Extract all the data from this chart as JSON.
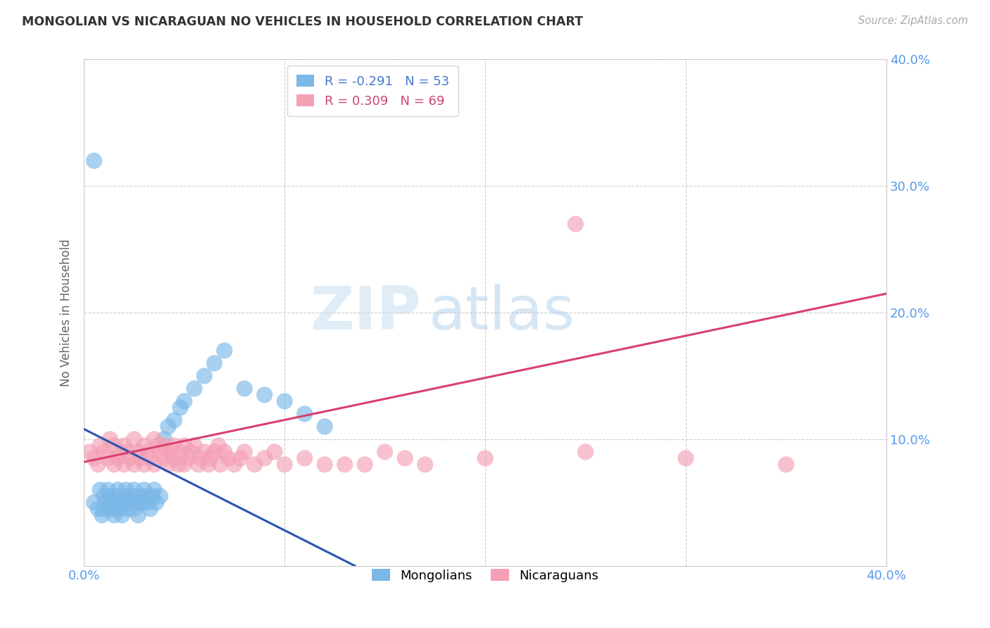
{
  "title": "MONGOLIAN VS NICARAGUAN NO VEHICLES IN HOUSEHOLD CORRELATION CHART",
  "source": "Source: ZipAtlas.com",
  "ylabel": "No Vehicles in Household",
  "xlim": [
    0.0,
    0.4
  ],
  "ylim": [
    0.0,
    0.4
  ],
  "legend_mongolian_R": "-0.291",
  "legend_mongolian_N": "53",
  "legend_nicaraguan_R": "0.309",
  "legend_nicaraguan_N": "69",
  "mongolian_color": "#7ab8e8",
  "nicaraguan_color": "#f4a0b5",
  "mongolian_line_color": "#2855b0",
  "nicaraguan_line_color": "#d94070",
  "watermark_zip": "ZIP",
  "watermark_atlas": "atlas",
  "mongolian_scatter_x": [
    0.005,
    0.007,
    0.008,
    0.009,
    0.01,
    0.01,
    0.011,
    0.012,
    0.013,
    0.013,
    0.014,
    0.015,
    0.015,
    0.016,
    0.017,
    0.018,
    0.018,
    0.019,
    0.02,
    0.02,
    0.021,
    0.022,
    0.023,
    0.024,
    0.025,
    0.025,
    0.026,
    0.027,
    0.028,
    0.029,
    0.03,
    0.031,
    0.032,
    0.033,
    0.034,
    0.035,
    0.036,
    0.038,
    0.04,
    0.042,
    0.045,
    0.048,
    0.05,
    0.055,
    0.06,
    0.065,
    0.07,
    0.08,
    0.09,
    0.1,
    0.11,
    0.12,
    0.005
  ],
  "mongolian_scatter_y": [
    0.05,
    0.045,
    0.06,
    0.04,
    0.055,
    0.045,
    0.05,
    0.06,
    0.045,
    0.055,
    0.05,
    0.045,
    0.04,
    0.055,
    0.06,
    0.05,
    0.045,
    0.04,
    0.055,
    0.05,
    0.06,
    0.045,
    0.05,
    0.055,
    0.06,
    0.045,
    0.05,
    0.04,
    0.055,
    0.05,
    0.06,
    0.055,
    0.05,
    0.045,
    0.055,
    0.06,
    0.05,
    0.055,
    0.1,
    0.11,
    0.115,
    0.125,
    0.13,
    0.14,
    0.15,
    0.16,
    0.17,
    0.14,
    0.135,
    0.13,
    0.12,
    0.11,
    0.32
  ],
  "nicaraguan_scatter_x": [
    0.003,
    0.005,
    0.007,
    0.008,
    0.01,
    0.012,
    0.013,
    0.015,
    0.015,
    0.017,
    0.018,
    0.02,
    0.02,
    0.022,
    0.023,
    0.025,
    0.025,
    0.027,
    0.028,
    0.03,
    0.03,
    0.032,
    0.033,
    0.035,
    0.035,
    0.037,
    0.038,
    0.04,
    0.04,
    0.042,
    0.043,
    0.045,
    0.045,
    0.047,
    0.048,
    0.05,
    0.05,
    0.052,
    0.053,
    0.055,
    0.057,
    0.058,
    0.06,
    0.062,
    0.063,
    0.065,
    0.067,
    0.068,
    0.07,
    0.072,
    0.075,
    0.078,
    0.08,
    0.085,
    0.09,
    0.095,
    0.1,
    0.11,
    0.12,
    0.13,
    0.14,
    0.15,
    0.16,
    0.17,
    0.2,
    0.25,
    0.3,
    0.35,
    0.245
  ],
  "nicaraguan_scatter_y": [
    0.09,
    0.085,
    0.08,
    0.095,
    0.09,
    0.085,
    0.1,
    0.095,
    0.08,
    0.085,
    0.09,
    0.08,
    0.095,
    0.09,
    0.085,
    0.1,
    0.08,
    0.09,
    0.085,
    0.095,
    0.08,
    0.09,
    0.085,
    0.1,
    0.08,
    0.095,
    0.09,
    0.085,
    0.095,
    0.08,
    0.09,
    0.085,
    0.095,
    0.08,
    0.09,
    0.095,
    0.08,
    0.085,
    0.09,
    0.095,
    0.08,
    0.085,
    0.09,
    0.08,
    0.085,
    0.09,
    0.095,
    0.08,
    0.09,
    0.085,
    0.08,
    0.085,
    0.09,
    0.08,
    0.085,
    0.09,
    0.08,
    0.085,
    0.08,
    0.08,
    0.08,
    0.09,
    0.085,
    0.08,
    0.085,
    0.09,
    0.085,
    0.08,
    0.27
  ],
  "mongolian_line_x": [
    0.0,
    0.135
  ],
  "mongolian_line_y": [
    0.108,
    0.0
  ],
  "nicaraguan_line_x": [
    0.0,
    0.4
  ],
  "nicaraguan_line_y": [
    0.082,
    0.215
  ]
}
